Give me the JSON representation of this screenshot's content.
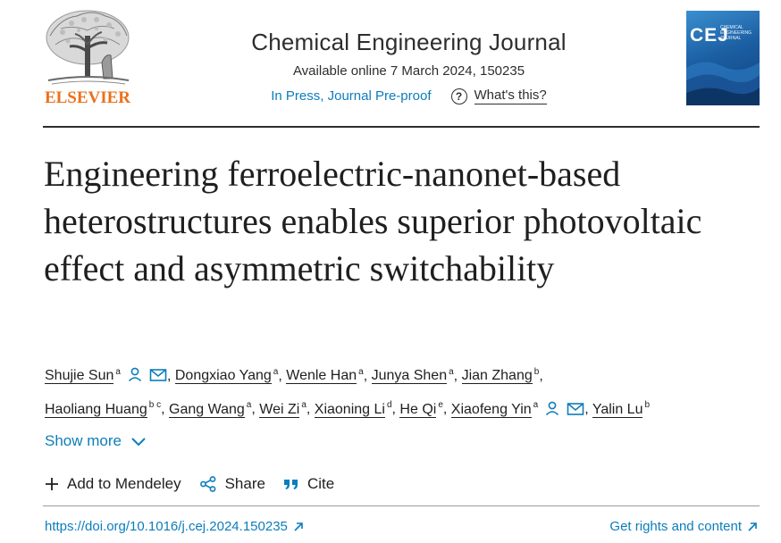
{
  "header": {
    "publisher": "ELSEVIER",
    "journal_name": "Chemical Engineering Journal",
    "availability": "Available online 7 March 2024, 150235",
    "status": "In Press, Journal Pre-proof",
    "help_link": "What's this?",
    "cover": {
      "abbr": "CEJ",
      "subtitle": "CHEMICAL ENGINEERING JOURNAL"
    }
  },
  "article": {
    "title": "Engineering ferroelectric-nanonet-based heterostructures enables superior photovoltaic effect and asymmetric switchability"
  },
  "authors": {
    "line1": [
      {
        "name": "Shujie Sun",
        "sup": "a",
        "icons": true
      },
      {
        "name": "Dongxiao Yang",
        "sup": "a"
      },
      {
        "name": "Wenle Han",
        "sup": "a"
      },
      {
        "name": "Junya Shen",
        "sup": "a"
      },
      {
        "name": "Jian Zhang",
        "sup": "b"
      }
    ],
    "line2": [
      {
        "name": "Haoliang Huang",
        "sup": "b c"
      },
      {
        "name": "Gang Wang",
        "sup": "a"
      },
      {
        "name": "Wei Zi",
        "sup": "a"
      },
      {
        "name": "Xiaoning Li",
        "sup": "d"
      },
      {
        "name": "He Qi",
        "sup": "e"
      },
      {
        "name": "Xiaofeng Yin",
        "sup": "a",
        "icons": true
      },
      {
        "name": "Yalin Lu",
        "sup": "b"
      }
    ],
    "separator": ",",
    "show_more": "Show more"
  },
  "actions": {
    "mendeley": "Add to Mendeley",
    "share": "Share",
    "cite": "Cite"
  },
  "footer": {
    "doi": "https://doi.org/10.1016/j.cej.2024.150235",
    "rights": "Get rights and content"
  },
  "colors": {
    "link": "#0c7dbb",
    "elsevier_orange": "#e9711c",
    "text": "#1f1f1f"
  },
  "icons": [
    "elsevier-tree-logo",
    "question-circle-icon",
    "person-icon",
    "mail-icon",
    "chevron-down-icon",
    "plus-icon",
    "share-icon",
    "quote-icon",
    "external-arrow-icon"
  ]
}
